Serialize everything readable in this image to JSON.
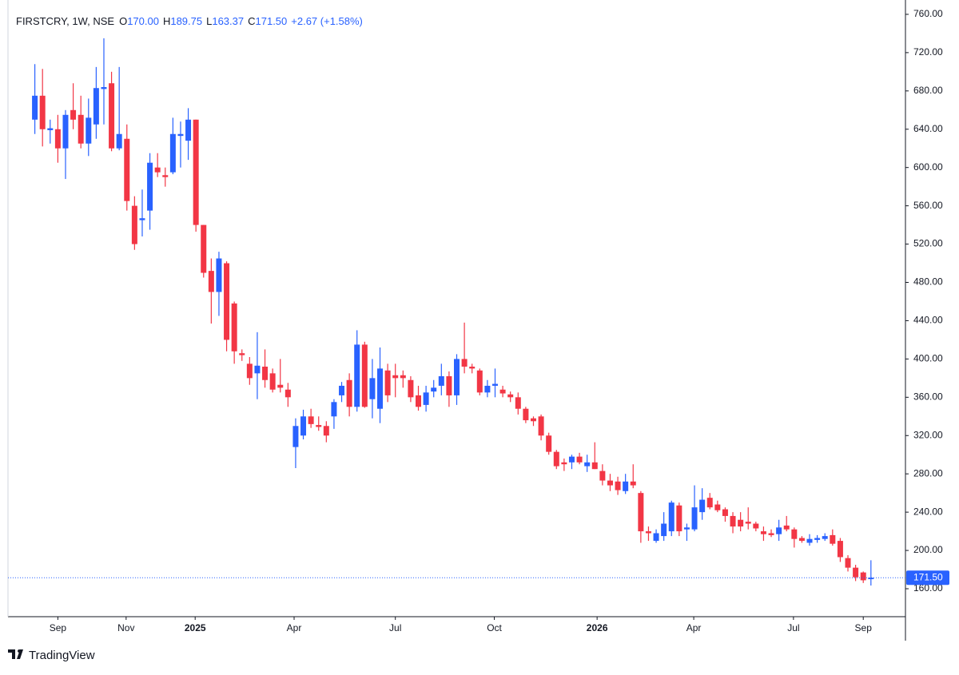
{
  "chart_data": {
    "type": "candlestick",
    "title": "FIRSTCRY, 1W, NSE",
    "legend": [
      {
        "key": "O",
        "text": "170.00"
      },
      {
        "key": "H",
        "text": "189.75"
      },
      {
        "key": "L",
        "text": "163.37"
      },
      {
        "key": "C",
        "text": "171.50"
      }
    ],
    "change": "+2.67 (+1.58%)",
    "up_color": "#2962ff",
    "down_color": "#f23645",
    "open": [
      650,
      675,
      639,
      640,
      620,
      660,
      655,
      625,
      645,
      682,
      688,
      620,
      630,
      560,
      545,
      555,
      600,
      592,
      595,
      633,
      628,
      650,
      540,
      492,
      470,
      500,
      458,
      406,
      395,
      385,
      392,
      385,
      373,
      368,
      308,
      320,
      340,
      331,
      330,
      340,
      362,
      378,
      350,
      415,
      358,
      348,
      388,
      383,
      383,
      378,
      362,
      352,
      366,
      372,
      382,
      362,
      400,
      392,
      388,
      365,
      372,
      368,
      363,
      360,
      348,
      338,
      340,
      320,
      303,
      292,
      292,
      298,
      288,
      292,
      283,
      273,
      272,
      262,
      272,
      260,
      220,
      210,
      215,
      220,
      247,
      222,
      222,
      240,
      255,
      248,
      243,
      236,
      232,
      230,
      228,
      220,
      218,
      217,
      226,
      222,
      213,
      208,
      211,
      212,
      216,
      210,
      192,
      182,
      177,
      170
    ],
    "high": [
      708,
      703,
      650,
      655,
      660,
      688,
      675,
      672,
      705,
      735,
      700,
      705,
      645,
      570,
      577,
      615,
      615,
      600,
      652,
      648,
      662,
      650,
      540,
      505,
      512,
      502,
      460,
      410,
      402,
      428,
      410,
      390,
      400,
      375,
      338,
      347,
      348,
      340,
      335,
      358,
      376,
      385,
      430,
      418,
      400,
      412,
      395,
      395,
      388,
      382,
      372,
      372,
      378,
      395,
      387,
      405,
      438,
      395,
      390,
      378,
      390,
      372,
      366,
      365,
      350,
      340,
      342,
      323,
      305,
      296,
      300,
      302,
      300,
      313,
      290,
      280,
      277,
      280,
      290,
      262,
      225,
      222,
      240,
      252,
      250,
      228,
      268,
      265,
      260,
      252,
      245,
      240,
      240,
      245,
      230,
      225,
      222,
      232,
      236,
      224,
      215,
      217,
      216,
      218,
      222,
      213,
      195,
      185,
      178,
      189.75
    ],
    "low": [
      635,
      622,
      625,
      605,
      588,
      640,
      620,
      612,
      630,
      645,
      617,
      618,
      555,
      514,
      528,
      535,
      590,
      580,
      593,
      600,
      608,
      533,
      485,
      437,
      445,
      408,
      395,
      398,
      373,
      358,
      370,
      365,
      365,
      350,
      286,
      316,
      328,
      325,
      313,
      327,
      355,
      340,
      345,
      349,
      338,
      333,
      355,
      360,
      370,
      355,
      346,
      345,
      360,
      362,
      350,
      352,
      385,
      385,
      362,
      360,
      360,
      360,
      355,
      342,
      333,
      330,
      315,
      300,
      285,
      283,
      285,
      290,
      282,
      285,
      268,
      262,
      258,
      259,
      265,
      208,
      210,
      208,
      210,
      215,
      215,
      210,
      220,
      232,
      243,
      240,
      230,
      218,
      220,
      222,
      220,
      210,
      214,
      210,
      220,
      203,
      208,
      205,
      208,
      210,
      205,
      188,
      178,
      168,
      166,
      163.37
    ],
    "close": [
      675,
      640,
      641,
      620,
      655,
      650,
      625,
      652,
      683,
      684,
      620,
      635,
      565,
      520,
      547,
      605,
      595,
      590,
      635,
      635,
      650,
      540,
      490,
      470,
      505,
      420,
      408,
      404,
      380,
      393,
      378,
      368,
      370,
      360,
      330,
      340,
      332,
      329,
      320,
      355,
      372,
      350,
      415,
      350,
      380,
      390,
      362,
      380,
      380,
      360,
      350,
      365,
      370,
      382,
      362,
      400,
      392,
      390,
      365,
      372,
      374,
      364,
      360,
      348,
      336,
      335,
      320,
      303,
      288,
      290,
      298,
      292,
      292,
      285,
      273,
      268,
      263,
      272,
      268,
      220,
      218,
      218,
      228,
      250,
      220,
      224,
      245,
      253,
      245,
      242,
      236,
      225,
      225,
      228,
      223,
      217,
      216,
      224,
      222,
      212,
      210,
      212,
      213,
      215,
      207,
      193,
      182,
      172,
      168.83,
      171.5
    ],
    "xticks": [
      {
        "value": 3,
        "label": "Sep"
      },
      {
        "value": 11.9,
        "label": "Nov"
      },
      {
        "value": 20.9,
        "label": "2025"
      },
      {
        "value": 33.8,
        "label": "Apr"
      },
      {
        "value": 47,
        "label": "Jul"
      },
      {
        "value": 59.9,
        "label": "Oct"
      },
      {
        "value": 73.3,
        "label": "2026"
      },
      {
        "value": 85.9,
        "label": "Apr"
      },
      {
        "value": 98.9,
        "label": "Jul"
      },
      {
        "value": 108,
        "label": "Sep"
      }
    ],
    "xlim": [
      -3.5,
      113.5
    ],
    "ylim": [
      130.8,
      768.3
    ],
    "yticks": [
      {
        "value": 160,
        "label": "160.00"
      },
      {
        "value": 200,
        "label": "200.00"
      },
      {
        "value": 240,
        "label": "240.00"
      },
      {
        "value": 280,
        "label": "280.00"
      },
      {
        "value": 320,
        "label": "320.00"
      },
      {
        "value": 360,
        "label": "360.00"
      },
      {
        "value": 400,
        "label": "400.00"
      },
      {
        "value": 440,
        "label": "440.00"
      },
      {
        "value": 480,
        "label": "480.00"
      },
      {
        "value": 520,
        "label": "520.00"
      },
      {
        "value": 560,
        "label": "560.00"
      },
      {
        "value": 600,
        "label": "600.00"
      },
      {
        "value": 640,
        "label": "640.00"
      },
      {
        "value": 680,
        "label": "680.00"
      },
      {
        "value": 720,
        "label": "720.00"
      },
      {
        "value": 760,
        "label": "760.00"
      }
    ],
    "last_price": {
      "value": 171.5,
      "label": "171.50"
    },
    "grid": false
  },
  "branding": "TradingView"
}
